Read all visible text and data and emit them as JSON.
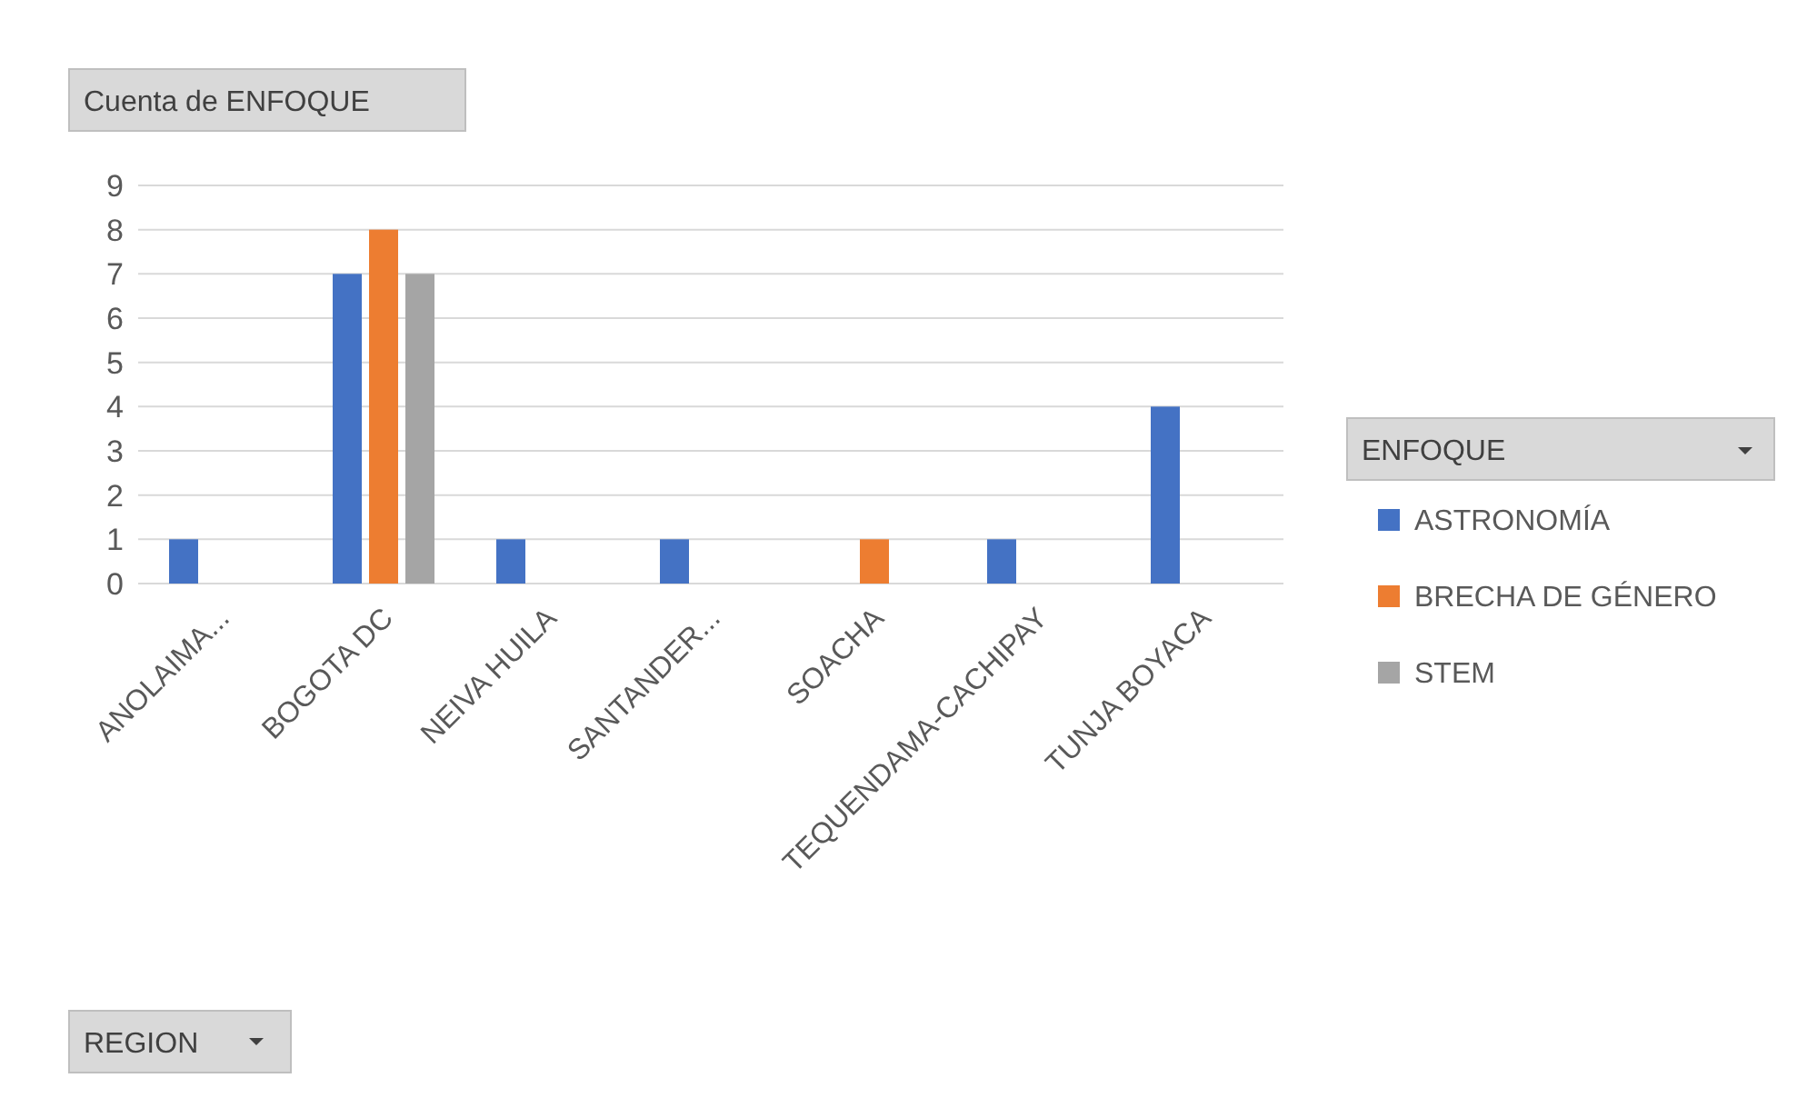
{
  "chart_data": {
    "type": "bar",
    "title": "Cuenta de ENFOQUE",
    "annotations": [
      "REGION"
    ],
    "legend_title": "ENFOQUE",
    "categories": [
      "ANOLAIMA...",
      "BOGOTA DC",
      "NEIVA HUILA",
      "SANTANDER...",
      "SOACHA",
      "TEQUENDAMA-CACHIPAY",
      "TUNJA BOYACA"
    ],
    "series": [
      {
        "name": "ASTRONOMÍA",
        "color": "#4472c4",
        "values": [
          1,
          7,
          1,
          1,
          null,
          1,
          4
        ]
      },
      {
        "name": "BRECHA DE GÉNERO",
        "color": "#ed7d31",
        "values": [
          null,
          8,
          null,
          null,
          1,
          null,
          null
        ]
      },
      {
        "name": "STEM",
        "color": "#a5a5a5",
        "values": [
          null,
          7,
          null,
          null,
          null,
          null,
          null
        ]
      }
    ],
    "ylim": [
      0,
      9
    ],
    "yticks": [
      0,
      1,
      2,
      3,
      4,
      5,
      6,
      7,
      8,
      9
    ],
    "grid": "y",
    "legend": "right"
  }
}
